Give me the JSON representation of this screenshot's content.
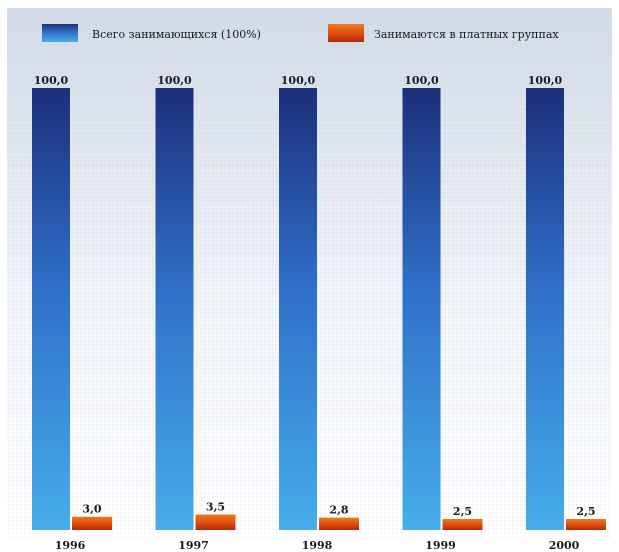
{
  "chart_data": {
    "type": "bar",
    "categories": [
      "1996",
      "1997",
      "1998",
      "1999",
      "2000"
    ],
    "series": [
      {
        "name": "Всего занимающихся (100%)",
        "values": [
          100.0,
          100.0,
          100.0,
          100.0,
          100.0
        ],
        "labels": [
          "100,0",
          "100,0",
          "100,0",
          "100,0",
          "100,0"
        ],
        "color": "#2f6fc8"
      },
      {
        "name": "Занимаются в платных группах",
        "values": [
          3.0,
          3.5,
          2.8,
          2.5,
          2.5
        ],
        "labels": [
          "3,0",
          "3,5",
          "2,8",
          "2,5",
          "2,5"
        ],
        "color": "#e05a10"
      }
    ],
    "title": "",
    "xlabel": "",
    "ylabel": "",
    "ylim": [
      0,
      100
    ],
    "grid": false,
    "legend": "top"
  }
}
